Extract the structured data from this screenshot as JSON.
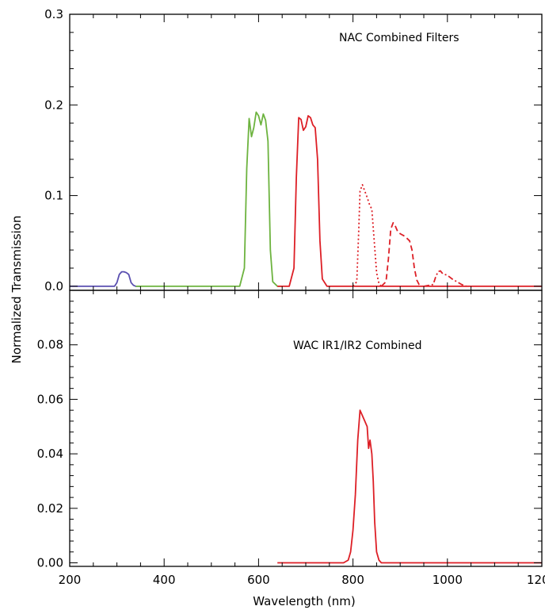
{
  "chart_data": {
    "type": "line",
    "xlabel": "Wavelength (nm)",
    "ylabel": "Normalized Transmission",
    "xlim": [
      200,
      1200
    ],
    "x_ticks": [
      "200",
      "400",
      "600",
      "800",
      "1000",
      "1200"
    ],
    "colors": {
      "violet": "#5a4fb0",
      "green": "#6db33f",
      "red": "#dd1f26",
      "black": "#000000"
    },
    "panels": [
      {
        "id": "nac",
        "annotation": "NAC Combined Filters",
        "ylim": [
          0,
          0.3
        ],
        "y_ticks": [
          "0.0",
          "0.1",
          "0.2",
          "0.3"
        ],
        "y_tick_values": [
          0,
          0.1,
          0.2,
          0.3
        ],
        "series": [
          {
            "color": "violet",
            "dash": "solid",
            "x": [
              200,
              295,
              300,
              305,
              310,
              315,
              320,
              325,
              330,
              335,
              340,
              350
            ],
            "y": [
              0,
              0,
              0.004,
              0.013,
              0.016,
              0.016,
              0.015,
              0.013,
              0.004,
              0.001,
              0,
              0
            ]
          },
          {
            "color": "green",
            "dash": "solid",
            "x": [
              340,
              560,
              570,
              575,
              580,
              585,
              590,
              595,
              600,
              605,
              610,
              615,
              620,
              625,
              630,
              640,
              650
            ],
            "y": [
              0,
              0,
              0.02,
              0.13,
              0.185,
              0.165,
              0.175,
              0.192,
              0.188,
              0.178,
              0.19,
              0.183,
              0.16,
              0.04,
              0.005,
              0,
              0
            ]
          },
          {
            "color": "red",
            "dash": "solid",
            "x": [
              640,
              665,
              675,
              680,
              685,
              690,
              695,
              700,
              705,
              710,
              715,
              720,
              725,
              730,
              735,
              745,
              800,
              1200
            ],
            "y": [
              0,
              0,
              0.02,
              0.12,
              0.186,
              0.184,
              0.172,
              0.176,
              0.188,
              0.186,
              0.178,
              0.175,
              0.14,
              0.05,
              0.008,
              0,
              0,
              0
            ]
          },
          {
            "color": "red",
            "dash": "dotted",
            "x": [
              800,
              808,
              812,
              815,
              820,
              825,
              830,
              835,
              840,
              845,
              850,
              855,
              860
            ],
            "y": [
              0,
              0.005,
              0.06,
              0.105,
              0.112,
              0.105,
              0.098,
              0.09,
              0.085,
              0.05,
              0.015,
              0.003,
              0
            ]
          },
          {
            "color": "red",
            "dash": "dashed",
            "x": [
              860,
              870,
              875,
              880,
              885,
              890,
              895,
              900,
              910,
              920,
              925,
              930,
              935,
              940,
              945
            ],
            "y": [
              0,
              0.005,
              0.03,
              0.063,
              0.07,
              0.066,
              0.06,
              0.058,
              0.055,
              0.05,
              0.04,
              0.02,
              0.007,
              0.002,
              0
            ]
          },
          {
            "color": "red",
            "dash": "dashdot",
            "x": [
              950,
              970,
              975,
              980,
              985,
              990,
              1000,
              1010,
              1020,
              1030,
              1040
            ],
            "y": [
              0,
              0.002,
              0.01,
              0.016,
              0.017,
              0.014,
              0.012,
              0.008,
              0.005,
              0.002,
              0
            ]
          }
        ]
      },
      {
        "id": "wac",
        "annotation": "WAC IR1/IR2 Combined",
        "ylim": [
          0,
          0.1
        ],
        "y_ticks": [
          "0.00",
          "0.02",
          "0.04",
          "0.06",
          "0.08"
        ],
        "y_tick_values": [
          0,
          0.02,
          0.04,
          0.06,
          0.08
        ],
        "series": [
          {
            "color": "red",
            "dash": "solid",
            "x": [
              640,
              780,
              790,
              795,
              800,
              805,
              810,
              815,
              820,
              825,
              830,
              833,
              836,
              840,
              843,
              846,
              850,
              855,
              860,
              880,
              1200
            ],
            "y": [
              0,
              0,
              0.001,
              0.004,
              0.012,
              0.025,
              0.045,
              0.056,
              0.054,
              0.052,
              0.05,
              0.042,
              0.045,
              0.04,
              0.03,
              0.015,
              0.004,
              0.001,
              0,
              0,
              0
            ]
          }
        ]
      }
    ]
  }
}
